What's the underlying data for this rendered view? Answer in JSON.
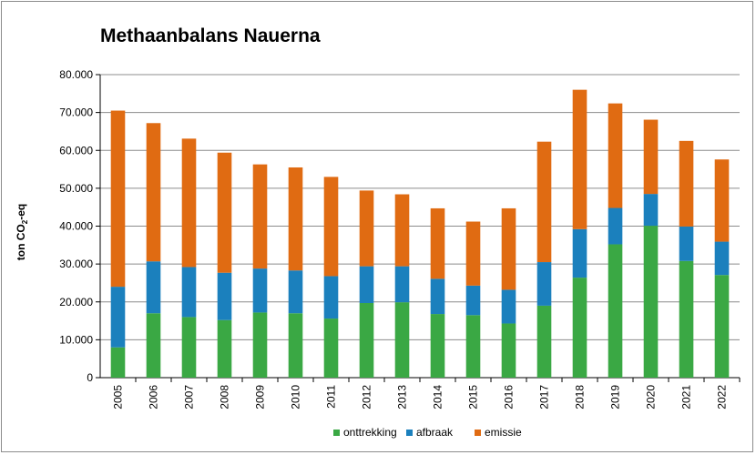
{
  "chart_data": {
    "type": "bar",
    "stacked": true,
    "title": "Methaanbalans Nauerna",
    "ylabel_main": "ton CO",
    "ylabel_sub": "2",
    "ylabel_tail": "-eq",
    "ylim": [
      0,
      80000
    ],
    "yticks": [
      "0",
      "10.000",
      "20.000",
      "30.000",
      "40.000",
      "50.000",
      "60.000",
      "70.000",
      "80.000"
    ],
    "grid": true,
    "legend_position": "bottom",
    "categories": [
      "2005",
      "2006",
      "2007",
      "2008",
      "2009",
      "2010",
      "2011",
      "2012",
      "2013",
      "2014",
      "2015",
      "2016",
      "2017",
      "2018",
      "2019",
      "2020",
      "2021",
      "2022"
    ],
    "series": [
      {
        "name": "onttrekking",
        "color": "#3aa844",
        "values": [
          8000,
          17000,
          16000,
          15200,
          17200,
          17000,
          15600,
          19700,
          19900,
          16800,
          16500,
          14300,
          19000,
          26400,
          35200,
          40100,
          30800,
          27100
        ]
      },
      {
        "name": "afbraak",
        "color": "#1b80bd",
        "values": [
          16000,
          13700,
          13200,
          12500,
          11600,
          11300,
          11200,
          9700,
          9500,
          9300,
          7800,
          8900,
          11500,
          12800,
          9600,
          8400,
          9100,
          8800
        ]
      },
      {
        "name": "emissie",
        "color": "#e06b12",
        "values": [
          46500,
          36500,
          33900,
          31700,
          27500,
          27200,
          26200,
          20000,
          19000,
          18600,
          16900,
          21500,
          31800,
          36800,
          27600,
          19600,
          22600,
          21700
        ]
      }
    ]
  }
}
